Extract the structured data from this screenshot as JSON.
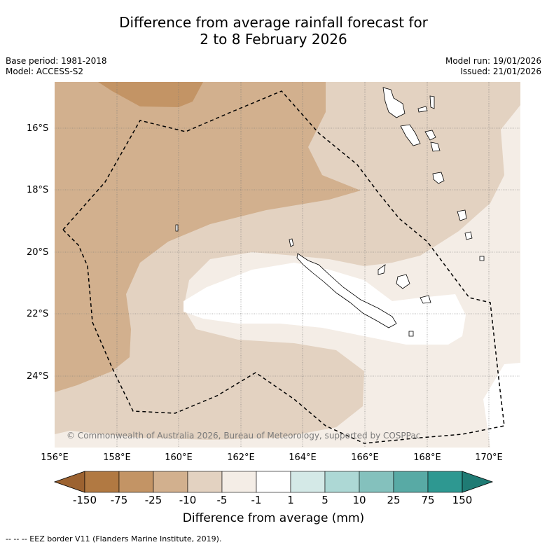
{
  "title": {
    "line1": "Difference from average rainfall forecast for",
    "line2": "2 to 8 February 2026"
  },
  "meta": {
    "base_period": "Base period: 1981-2018",
    "model": "Model: ACCESS-S2",
    "model_run": "Model run: 19/01/2026",
    "issued": "Issued: 21/01/2026"
  },
  "axes": {
    "lat_labels": [
      "16°S",
      "18°S",
      "20°S",
      "22°S",
      "24°S"
    ],
    "lon_labels": [
      "156°E",
      "158°E",
      "160°E",
      "162°E",
      "164°E",
      "166°E",
      "168°E",
      "170°E"
    ]
  },
  "colorbar": {
    "title": "Difference from average (mm)",
    "tick_labels": [
      "-150",
      "-75",
      "-25",
      "-10",
      "-5",
      "-1",
      "1",
      "5",
      "10",
      "25",
      "75",
      "150"
    ],
    "colors": [
      "#9c6230",
      "#b17942",
      "#c39465",
      "#d2b08e",
      "#e3d2c1",
      "#f4ede6",
      "#ffffff",
      "#d4e9e7",
      "#add8d5",
      "#84c1bd",
      "#58aaa5",
      "#2e9891",
      "#1f7b74"
    ]
  },
  "map_colors": {
    "ocean_dark": "#c39465",
    "ocean_mid": "#d2b08e",
    "ocean_light": "#e3d2c1",
    "ocean_pale": "#f4ede6",
    "ocean_white": "#ffffff"
  },
  "copyright": "© Commonwealth of Australia 2026, Bureau of Meteorology, supported by COSPPac",
  "footnote": "-- -- -- EEZ border V11 (Flanders Marine Institute, 2019)."
}
